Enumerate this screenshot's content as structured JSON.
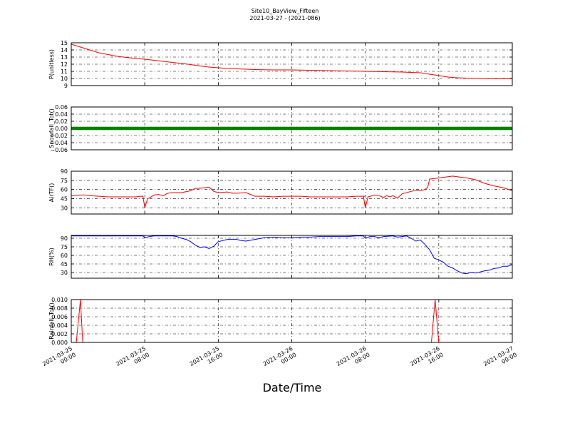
{
  "figure": {
    "title": "Site10_BayView_Fifteen",
    "subtitle": "2021-03-27 - (2021-086)",
    "xlabel": "Date/Time"
  },
  "chart_data": [
    {
      "type": "line",
      "ylabel": "P(unitless)",
      "ylim": [
        9,
        15
      ],
      "yticks": [
        9,
        10,
        11,
        12,
        13,
        14,
        15
      ],
      "ytick_labels": [
        "9",
        "10",
        "11",
        "12",
        "13",
        "14",
        "15"
      ],
      "xlim_hours": [
        0,
        48
      ],
      "grid": true,
      "series": [
        {
          "color": "#ff0000",
          "points": [
            [
              0,
              14.8
            ],
            [
              1,
              14.4
            ],
            [
              2,
              14.0
            ],
            [
              3,
              13.6
            ],
            [
              4,
              13.35
            ],
            [
              5,
              13.1
            ],
            [
              6,
              12.95
            ],
            [
              7,
              12.8
            ],
            [
              8,
              12.7
            ],
            [
              9,
              12.55
            ],
            [
              10,
              12.4
            ],
            [
              11,
              12.25
            ],
            [
              12,
              12.1
            ],
            [
              13,
              11.95
            ],
            [
              14,
              11.75
            ],
            [
              15,
              11.6
            ],
            [
              16,
              11.5
            ],
            [
              17,
              11.4
            ],
            [
              18,
              11.35
            ],
            [
              19,
              11.3
            ],
            [
              20,
              11.25
            ],
            [
              22,
              11.2
            ],
            [
              24,
              11.2
            ],
            [
              26,
              11.15
            ],
            [
              28,
              11.1
            ],
            [
              30,
              11.05
            ],
            [
              32,
              11.0
            ],
            [
              34,
              10.95
            ],
            [
              36,
              10.9
            ],
            [
              38,
              10.8
            ],
            [
              39,
              10.6
            ],
            [
              40,
              10.4
            ],
            [
              41,
              10.2
            ],
            [
              42,
              10.1
            ],
            [
              43,
              10.05
            ],
            [
              44,
              10.0
            ],
            [
              46,
              9.95
            ],
            [
              48,
              9.95
            ]
          ]
        }
      ]
    },
    {
      "type": "line",
      "ylabel": "Snowfall_Tot()",
      "ylim": [
        -0.06,
        0.06
      ],
      "yticks": [
        -0.06,
        -0.04,
        -0.02,
        0.0,
        0.02,
        0.04,
        0.06
      ],
      "ytick_labels": [
        "−0.06",
        "−0.04",
        "−0.02",
        "0.00",
        "0.02",
        "0.04",
        "0.06"
      ],
      "xlim_hours": [
        0,
        48
      ],
      "grid": true,
      "series": [
        {
          "color": "#008000",
          "marker": true,
          "points": [
            [
              0,
              0
            ],
            [
              48,
              0
            ]
          ]
        }
      ]
    },
    {
      "type": "line",
      "ylabel": "AirTF()",
      "ylim": [
        20,
        90
      ],
      "yticks": [
        30,
        45,
        60,
        75,
        90
      ],
      "ytick_labels": [
        "30",
        "45",
        "60",
        "75",
        "90"
      ],
      "xlim_hours": [
        0,
        48
      ],
      "grid": true,
      "series": [
        {
          "color": "#ff0000",
          "points": [
            [
              0,
              50
            ],
            [
              1,
              51
            ],
            [
              1.5,
              51
            ],
            [
              2,
              50
            ],
            [
              3,
              49
            ],
            [
              4,
              48
            ],
            [
              5,
              48
            ],
            [
              6,
              48
            ],
            [
              7,
              48
            ],
            [
              7.5,
              49
            ],
            [
              7.8,
              49
            ],
            [
              8,
              30
            ],
            [
              8.3,
              45
            ],
            [
              8.7,
              48
            ],
            [
              9,
              51
            ],
            [
              9.5,
              52
            ],
            [
              10,
              50
            ],
            [
              10.5,
              54
            ],
            [
              11,
              55
            ],
            [
              11.5,
              55
            ],
            [
              12,
              55
            ],
            [
              13,
              58
            ],
            [
              13.5,
              62
            ],
            [
              14,
              62
            ],
            [
              14.5,
              63
            ],
            [
              15,
              64
            ],
            [
              15.5,
              57
            ],
            [
              16,
              55
            ],
            [
              17,
              56
            ],
            [
              17.5,
              54
            ],
            [
              18,
              54
            ],
            [
              19,
              55
            ],
            [
              19.5,
              52
            ],
            [
              20,
              49
            ],
            [
              21,
              49
            ],
            [
              22,
              48
            ],
            [
              23,
              49
            ],
            [
              24,
              49
            ],
            [
              25,
              49
            ],
            [
              26,
              48
            ],
            [
              27,
              48
            ],
            [
              28,
              48
            ],
            [
              29,
              48
            ],
            [
              30,
              48
            ],
            [
              31,
              49
            ],
            [
              32,
              49
            ],
            [
              31.8,
              49
            ],
            [
              32,
              30
            ],
            [
              32.3,
              48
            ],
            [
              33,
              51
            ],
            [
              33.5,
              50
            ],
            [
              34,
              47
            ],
            [
              34.3,
              50
            ],
            [
              34.7,
              48
            ],
            [
              35,
              50
            ],
            [
              35.5,
              46
            ],
            [
              36,
              53
            ],
            [
              37,
              57
            ],
            [
              37.5,
              59
            ],
            [
              38,
              58
            ],
            [
              38.5,
              60
            ],
            [
              38.8,
              64
            ],
            [
              39,
              77
            ],
            [
              40,
              79
            ],
            [
              41,
              81
            ],
            [
              41.5,
              82
            ],
            [
              42,
              81
            ],
            [
              42.5,
              80
            ],
            [
              43,
              79
            ],
            [
              44,
              76
            ],
            [
              44.5,
              73
            ],
            [
              45,
              70
            ],
            [
              46,
              66
            ],
            [
              47,
              63
            ],
            [
              48,
              58
            ]
          ]
        }
      ]
    },
    {
      "type": "line",
      "ylabel": "RH(%)",
      "ylim": [
        20,
        95
      ],
      "yticks": [
        30,
        45,
        60,
        75,
        90
      ],
      "ytick_labels": [
        "30",
        "45",
        "60",
        "75",
        "90"
      ],
      "xlim_hours": [
        0,
        48
      ],
      "grid": true,
      "series": [
        {
          "color": "#0000ff",
          "points": [
            [
              0,
              94
            ],
            [
              2,
              94
            ],
            [
              4,
              94
            ],
            [
              6,
              94
            ],
            [
              7.8,
              94
            ],
            [
              8,
              91
            ],
            [
              8.5,
              93
            ],
            [
              9,
              94
            ],
            [
              10,
              94
            ],
            [
              11,
              94
            ],
            [
              11.5,
              93
            ],
            [
              12,
              90
            ],
            [
              12.5,
              88
            ],
            [
              13,
              84
            ],
            [
              13.5,
              78
            ],
            [
              14,
              74
            ],
            [
              14.5,
              75
            ],
            [
              15,
              72
            ],
            [
              15.5,
              76
            ],
            [
              16,
              84
            ],
            [
              17,
              88
            ],
            [
              18,
              88
            ],
            [
              18.5,
              86
            ],
            [
              19,
              85
            ],
            [
              20,
              88
            ],
            [
              21,
              91
            ],
            [
              22,
              92
            ],
            [
              23,
              91
            ],
            [
              24,
              91
            ],
            [
              25,
              92
            ],
            [
              26,
              92
            ],
            [
              27,
              93
            ],
            [
              28,
              93
            ],
            [
              29,
              93
            ],
            [
              30,
              93
            ],
            [
              31,
              94
            ],
            [
              31.8,
              94
            ],
            [
              32,
              90
            ],
            [
              32.5,
              93
            ],
            [
              33,
              93
            ],
            [
              33.5,
              91
            ],
            [
              34,
              93
            ],
            [
              35,
              94
            ],
            [
              35.5,
              92
            ],
            [
              36,
              93
            ],
            [
              36.5,
              94
            ],
            [
              37,
              90
            ],
            [
              37.5,
              85
            ],
            [
              38,
              87
            ],
            [
              38.5,
              79
            ],
            [
              39,
              70
            ],
            [
              39.5,
              55
            ],
            [
              40,
              52
            ],
            [
              40.5,
              48
            ],
            [
              41,
              41
            ],
            [
              41.5,
              38
            ],
            [
              42,
              33
            ],
            [
              42.5,
              29
            ],
            [
              43,
              28
            ],
            [
              43.5,
              30
            ],
            [
              44,
              29
            ],
            [
              44.5,
              31
            ],
            [
              45,
              33
            ],
            [
              45.5,
              34
            ],
            [
              46,
              37
            ],
            [
              46.5,
              38
            ],
            [
              47,
              41
            ],
            [
              47.5,
              41
            ],
            [
              48,
              44
            ]
          ]
        }
      ]
    },
    {
      "type": "line",
      "ylabel": "Rainfall_Tot()",
      "ylim": [
        0,
        0.01
      ],
      "yticks": [
        0,
        0.002,
        0.004,
        0.006,
        0.008,
        0.01
      ],
      "ytick_labels": [
        "0.000",
        "0.002",
        "0.004",
        "0.006",
        "0.008",
        "0.010"
      ],
      "xlim_hours": [
        0,
        48
      ],
      "grid": true,
      "series": [
        {
          "color": "#ff0000",
          "points": [
            [
              0,
              0
            ],
            [
              0.55,
              0
            ],
            [
              1.0,
              0.01
            ],
            [
              1.25,
              0
            ],
            [
              39.2,
              0
            ],
            [
              39.6,
              0.01
            ],
            [
              40.0,
              0
            ],
            [
              48,
              0
            ]
          ]
        }
      ]
    }
  ],
  "x_axis": {
    "ticks_hours": [
      0,
      8,
      16,
      24,
      32,
      40,
      48
    ],
    "tick_labels": [
      [
        "2021-03-25",
        "00:00"
      ],
      [
        "2021-03-25",
        "08:00"
      ],
      [
        "2021-03-25",
        "16:00"
      ],
      [
        "2021-03-26",
        "00:00"
      ],
      [
        "2021-03-26",
        "08:00"
      ],
      [
        "2021-03-26",
        "16:00"
      ],
      [
        "2021-03-27",
        "00:00"
      ]
    ]
  }
}
